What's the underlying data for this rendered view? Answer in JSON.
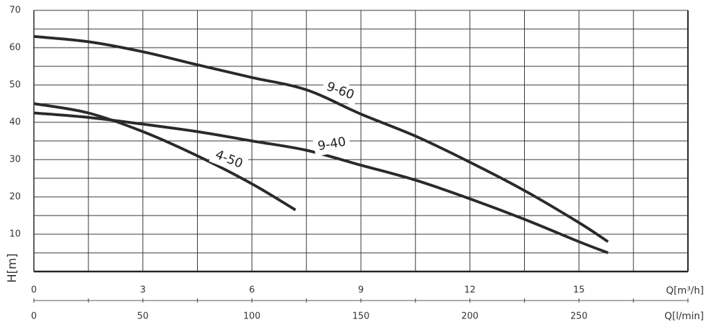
{
  "chart_data": {
    "type": "line",
    "x_label": "Q[m³/h]",
    "x2_label": "Q[l/min]",
    "y_label": "H[m]",
    "xlim": [
      0,
      18
    ],
    "xticks": [
      0,
      3,
      6,
      9,
      12,
      15
    ],
    "x2lim": [
      0,
      300
    ],
    "x2ticks": [
      0,
      50,
      100,
      150,
      200,
      250
    ],
    "ylim": [
      0,
      70
    ],
    "yticks": [
      10,
      20,
      30,
      40,
      50,
      60,
      70
    ],
    "xgrid": [
      0,
      1.5,
      3,
      4.5,
      6,
      7.5,
      9,
      10.5,
      12,
      13.5,
      15,
      16.5,
      18
    ],
    "ygrid": [
      0,
      5,
      10,
      15,
      20,
      25,
      30,
      35,
      40,
      45,
      50,
      55,
      60,
      65,
      70
    ],
    "series": [
      {
        "name": "9-60",
        "color": "#2a2a2a",
        "x": [
          0,
          1.5,
          3,
          4.5,
          6,
          7.5,
          9,
          10.5,
          12,
          13.5,
          15,
          15.8
        ],
        "values": [
          63,
          61.6,
          58.9,
          55.4,
          52,
          48.7,
          42.2,
          36.3,
          29.3,
          21.7,
          13.1,
          8
        ]
      },
      {
        "name": "9-40",
        "color": "#2a2a2a",
        "x": [
          0,
          1.5,
          3,
          4.5,
          6,
          7.5,
          9,
          10.5,
          12,
          13.5,
          15,
          15.8
        ],
        "values": [
          42.5,
          41.3,
          39.5,
          37.5,
          35,
          32.5,
          28.5,
          24.5,
          19.5,
          14,
          8,
          5
        ]
      },
      {
        "name": "4-50",
        "color": "#2a2a2a",
        "x": [
          0,
          1.5,
          3,
          4.5,
          6,
          7.2
        ],
        "values": [
          45,
          42.5,
          37.5,
          31,
          23.5,
          16.5
        ]
      }
    ]
  }
}
